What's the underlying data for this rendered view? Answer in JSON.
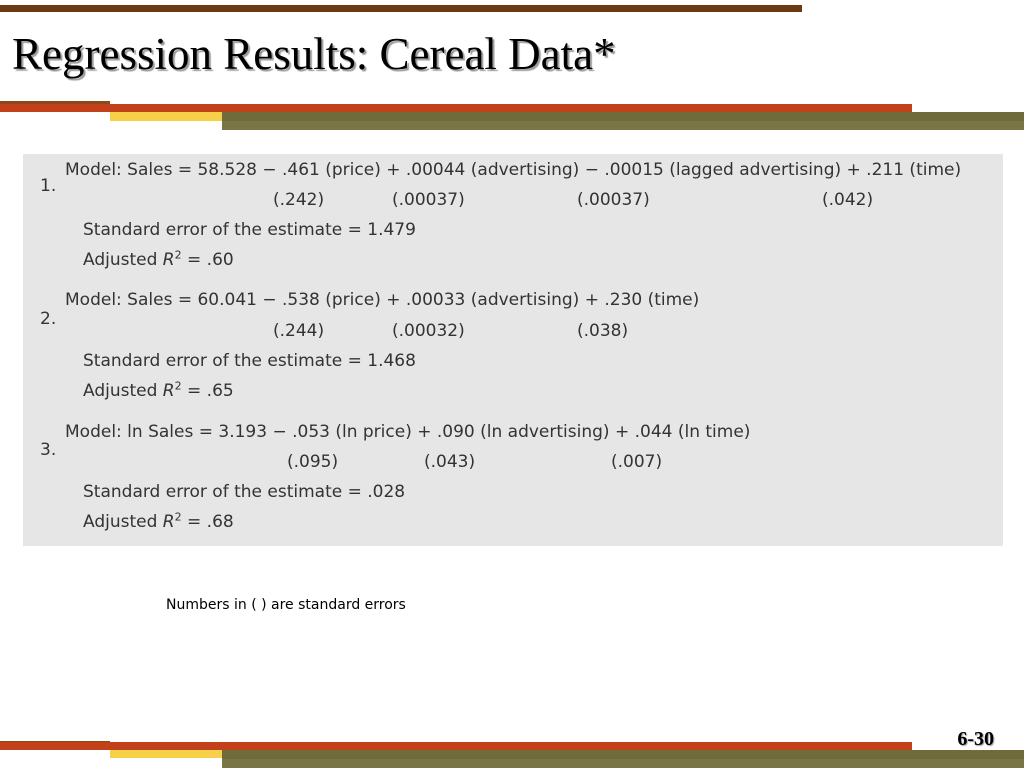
{
  "slide": {
    "title": "Regression Results: Cereal Data*",
    "footnote": "Numbers in ( ) are standard errors",
    "page_number": "6-30"
  },
  "colors": {
    "top_bar": "#6b3a12",
    "stripe_red": "#c2401a",
    "stripe_yellow": "#f7d04a",
    "stripe_olive": "#6f6b3a",
    "panel_bg": "#e6e6e6"
  },
  "models": [
    {
      "number": "1.",
      "equation": "Model: Sales = 58.528 − .461 (price) + .00044 (advertising) − .00015 (lagged advertising) + .211 (time)",
      "std_errors": [
        "(.242)",
        "(.00037)",
        "(.00037)",
        "(.042)"
      ],
      "see": "Standard error of the estimate = 1.479",
      "adj_label": "Adjusted ",
      "adj_r": "R",
      "adj_sup": "2",
      "adj_value": " = .60"
    },
    {
      "number": "2.",
      "equation": "Model: Sales = 60.041 − .538 (price) + .00033 (advertising) + .230 (time)",
      "std_errors": [
        "(.244)",
        "(.00032)",
        "(.038)"
      ],
      "see": "Standard error of the estimate = 1.468",
      "adj_label": "Adjusted ",
      "adj_r": "R",
      "adj_sup": "2",
      "adj_value": " = .65"
    },
    {
      "number": "3.",
      "equation": "Model: ln Sales = 3.193 − .053 (ln price) + .090 (ln advertising) + .044 (ln time)",
      "std_errors": [
        "(.095)",
        "(.043)",
        "(.007)"
      ],
      "see": "Standard error of the estimate = .028",
      "adj_label": "Adjusted ",
      "adj_r": "R",
      "adj_sup": "2",
      "adj_value": " = .68"
    }
  ]
}
